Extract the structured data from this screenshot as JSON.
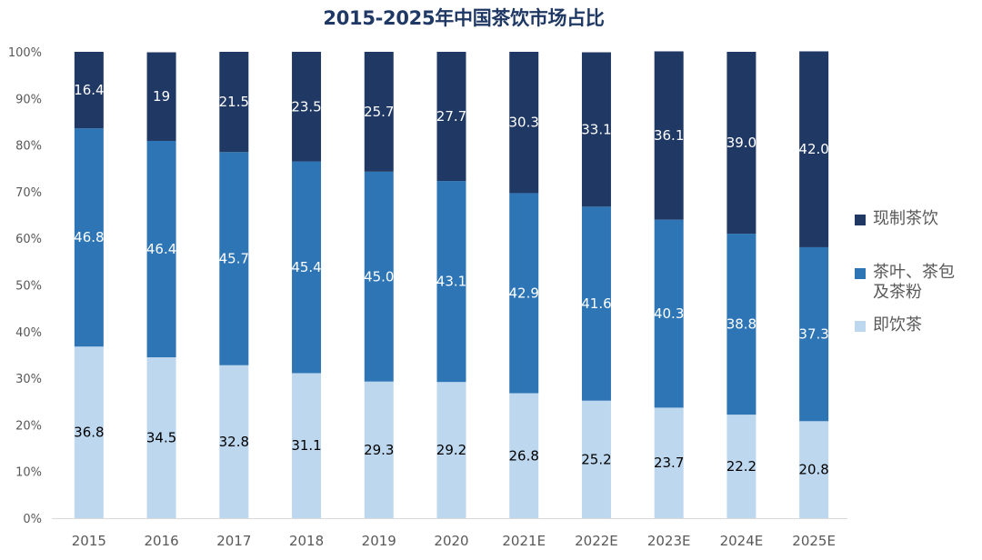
{
  "chart_data": {
    "type": "bar",
    "stacked": "percent",
    "title": "2015-2025年中国茶饮市场占比",
    "xlabel": "",
    "ylabel": "",
    "ylim": [
      0,
      100
    ],
    "yticks": [
      "0%",
      "10%",
      "20%",
      "30%",
      "40%",
      "50%",
      "60%",
      "70%",
      "80%",
      "90%",
      "100%"
    ],
    "categories": [
      "2015",
      "2016",
      "2017",
      "2018",
      "2019",
      "2020",
      "2021E",
      "2022E",
      "2023E",
      "2024E",
      "2025E"
    ],
    "series": [
      {
        "name": "即饮茶",
        "color": "#bdd7ee",
        "label_color": "#000000",
        "values": [
          36.8,
          34.5,
          32.8,
          31.1,
          29.3,
          29.2,
          26.8,
          25.2,
          23.7,
          22.2,
          20.8
        ],
        "labels": [
          "36.8",
          "34.5",
          "32.8",
          "31.1",
          "29.3",
          "29.2",
          "26.8",
          "25.2",
          "23.7",
          "22.2",
          "20.8"
        ]
      },
      {
        "name": "茶叶、茶包及茶粉",
        "color": "#2e75b6",
        "label_color": "#ffffff",
        "values": [
          46.8,
          46.4,
          45.7,
          45.4,
          45.0,
          43.1,
          42.9,
          41.6,
          40.3,
          38.8,
          37.3
        ],
        "labels": [
          "46.8",
          "46.4",
          "45.7",
          "45.4",
          "45.0",
          "43.1",
          "42.9",
          "41.6",
          "40.3",
          "38.8",
          "37.3"
        ]
      },
      {
        "name": "现制茶饮",
        "color": "#203864",
        "label_color": "#ffffff",
        "values": [
          16.4,
          19,
          21.5,
          23.5,
          25.7,
          27.7,
          30.3,
          33.1,
          36.1,
          39.0,
          42.0
        ],
        "labels": [
          "16.4",
          "19",
          "21.5",
          "23.5",
          "25.7",
          "27.7",
          "30.3",
          "33.1",
          "36.1",
          "39.0",
          "42.0"
        ]
      }
    ],
    "legend": {
      "position": "right",
      "entries": [
        {
          "label": "现制茶饮",
          "color": "#203864"
        },
        {
          "label": "茶叶、茶包及茶粉",
          "color": "#2e75b6"
        },
        {
          "label": "即饮茶",
          "color": "#bdd7ee"
        }
      ]
    },
    "grid": false
  }
}
